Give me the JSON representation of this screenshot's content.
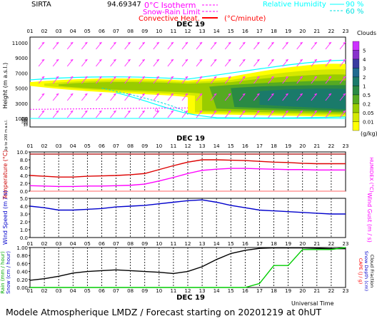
{
  "station": "SIRTA",
  "station_code": "94.69347",
  "date_label": "DEC 19",
  "hours": [
    "01",
    "02",
    "03",
    "04",
    "05",
    "06",
    "07",
    "08",
    "09",
    "10",
    "11",
    "12",
    "13",
    "14",
    "15",
    "16",
    "17",
    "18",
    "19",
    "20",
    "21",
    "22",
    "23"
  ],
  "legend": {
    "isotherm": "0°C Isotherm",
    "snow_rain": "Snow-Rain Limit",
    "convective": "Convective Heat.",
    "convective_unit": "(°C/minute)",
    "rh_label": "Relative Humidity",
    "rh_90": "90 %",
    "rh_60": "60 %",
    "clouds_title": "Clouds",
    "clouds_unit": "(g/kg)",
    "clouds_scale": [
      "5",
      "4",
      "3",
      "2",
      "1",
      "0.5",
      "0.2",
      "0.05",
      "0.01"
    ],
    "colors": {
      "isotherm": "#ff00ff",
      "snow_rain": "#ff00ff",
      "convective": "#ff0000",
      "rh90": "#00ffff",
      "rh60": "#00e0e0"
    }
  },
  "chart_data": [
    {
      "type": "heatmap",
      "name": "vertical-profile",
      "ylabel": "Height (m a.s.l.)",
      "ylabel2": "Up to 200 m a.s.l.",
      "yticks": [
        "11000",
        "9000",
        "7000",
        "5000",
        "3000",
        "1000",
        "200",
        "150",
        "100",
        "50",
        "10"
      ],
      "isotherm_height_m": 2200,
      "isotherm_label": "0"
    },
    {
      "type": "line",
      "name": "temperature",
      "ylabel": "Temperature (°C)",
      "ylabel2": "HUMIDEX (°C)",
      "yticks": [
        "10.0",
        "8.0",
        "6.0",
        "4.0",
        "2.0",
        "0.0"
      ],
      "ylim": [
        0,
        10
      ],
      "x": [
        1,
        2,
        3,
        4,
        5,
        6,
        7,
        8,
        9,
        10,
        11,
        12,
        13,
        14,
        15,
        16,
        17,
        18,
        19,
        20,
        21,
        22,
        23
      ],
      "series": [
        {
          "values": [
            4.0,
            3.8,
            3.6,
            3.6,
            3.8,
            3.9,
            4.0,
            4.2,
            4.5,
            5.5,
            6.5,
            7.4,
            8.0,
            8.0,
            7.9,
            7.8,
            7.6,
            7.4,
            7.3,
            7.1,
            7.0,
            7.0,
            7.0
          ],
          "color": "#dd0000"
        },
        {
          "values": [
            1.4,
            1.3,
            1.2,
            1.2,
            1.3,
            1.3,
            1.4,
            1.5,
            1.8,
            2.6,
            3.5,
            4.5,
            5.3,
            5.6,
            5.8,
            5.8,
            5.7,
            5.6,
            5.5,
            5.5,
            5.4,
            5.4,
            5.4
          ],
          "color": "#ff00ff"
        }
      ]
    },
    {
      "type": "line",
      "name": "wind",
      "ylabel": "Wind Speed (m / s)",
      "ylabel2": "Wind Gust (m / s)",
      "yticks": [
        "5.0",
        "4.0",
        "3.0",
        "2.0",
        "1.0",
        "0.0"
      ],
      "ylim": [
        0,
        5
      ],
      "x": [
        1,
        2,
        3,
        4,
        5,
        6,
        7,
        8,
        9,
        10,
        11,
        12,
        13,
        14,
        15,
        16,
        17,
        18,
        19,
        20,
        21,
        22,
        23
      ],
      "series": [
        {
          "values": [
            4.0,
            3.8,
            3.5,
            3.5,
            3.6,
            3.7,
            3.9,
            4.0,
            4.1,
            4.3,
            4.5,
            4.7,
            4.8,
            4.5,
            4.1,
            3.8,
            3.5,
            3.4,
            3.3,
            3.2,
            3.1,
            3.0,
            3.0
          ],
          "color": "#0000cc"
        }
      ]
    },
    {
      "type": "line",
      "name": "precipitation",
      "ylabel": "Rain (mm / hour)",
      "ylabel_snow": "Snow (cm / hour)",
      "ylabel2": "CAPE (J / g)",
      "ylabel2_snow": "Snow Depth (cm)",
      "ylabel2_cloud": "Cloud Fraction",
      "yticks": [
        "1.00",
        "0.80",
        "0.60",
        "0.40",
        "0.20",
        "0.00"
      ],
      "ylim": [
        0,
        1
      ],
      "x": [
        1,
        2,
        3,
        4,
        5,
        6,
        7,
        8,
        9,
        10,
        11,
        12,
        13,
        14,
        15,
        16,
        17,
        18,
        19,
        20,
        21,
        22,
        23
      ],
      "series": [
        {
          "values": [
            0.18,
            0.22,
            0.28,
            0.36,
            0.4,
            0.42,
            0.44,
            0.42,
            0.4,
            0.38,
            0.35,
            0.4,
            0.52,
            0.7,
            0.85,
            0.93,
            0.98,
            0.99,
            0.99,
            0.99,
            0.98,
            0.97,
            0.97
          ],
          "color": "#000000"
        },
        {
          "values": [
            0,
            0,
            0,
            0,
            0,
            0,
            0,
            0,
            0,
            0,
            0,
            0,
            0,
            0,
            0,
            0,
            0.1,
            0.55,
            0.55,
            0.95,
            0.95,
            0.95,
            1.0
          ],
          "color": "#00cc00"
        }
      ],
      "xlabel": "Universal Time"
    }
  ],
  "footer": "Modele Atmospherique LMDZ / Forecast starting on 20201219 at 0hUT"
}
